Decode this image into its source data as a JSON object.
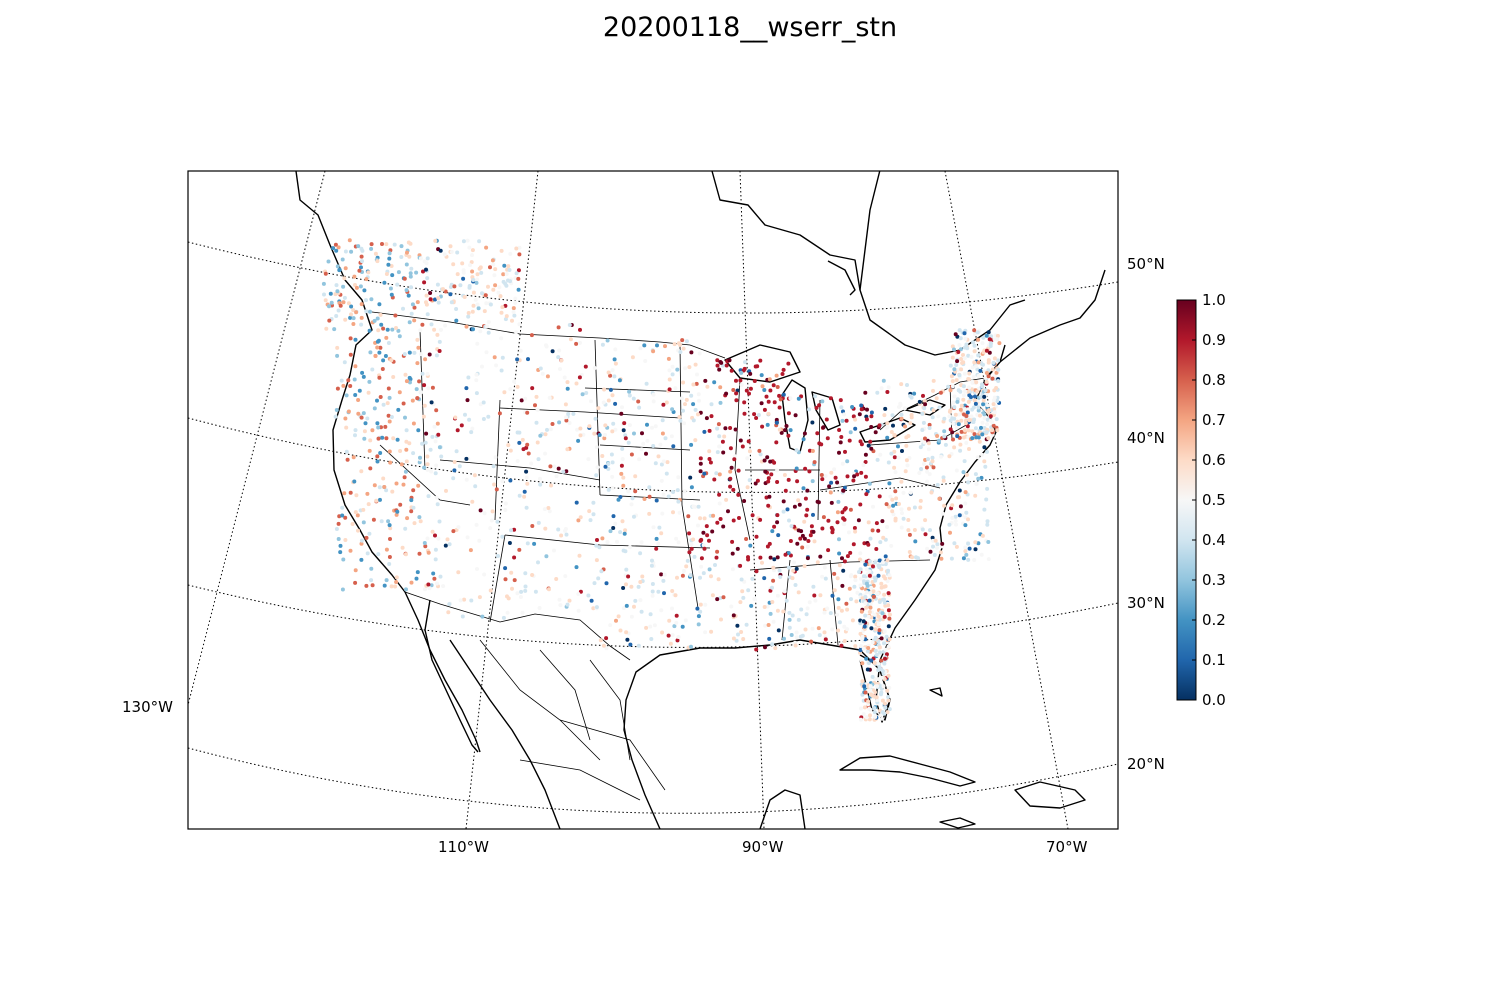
{
  "figure": {
    "title": "20200118__wserr_stn"
  },
  "map": {
    "projection": "lambert-conformal",
    "graticule_style": "dotted",
    "meridians": [
      {
        "value": -130,
        "label": "130°W"
      },
      {
        "value": -110,
        "label": "110°W"
      },
      {
        "value": -90,
        "label": "90°W"
      },
      {
        "value": -70,
        "label": "70°W"
      }
    ],
    "parallels": [
      {
        "value": 20,
        "label": "20°N"
      },
      {
        "value": 30,
        "label": "30°N"
      },
      {
        "value": 40,
        "label": "40°N"
      },
      {
        "value": 50,
        "label": "50°N"
      }
    ],
    "colormap": "RdBu_r",
    "stations_note": "dense station scatter colored by value 0–1"
  },
  "colorbar": {
    "min": 0.0,
    "max": 1.0,
    "tick_labels": [
      "0.0",
      "0.1",
      "0.2",
      "0.3",
      "0.4",
      "0.5",
      "0.6",
      "0.7",
      "0.8",
      "0.9",
      "1.0"
    ],
    "colors": [
      "#053061",
      "#2166ac",
      "#4393c3",
      "#92c5de",
      "#d1e5f0",
      "#f7f7f7",
      "#fddbc7",
      "#f4a582",
      "#d6604d",
      "#b2182b",
      "#67001f"
    ]
  }
}
